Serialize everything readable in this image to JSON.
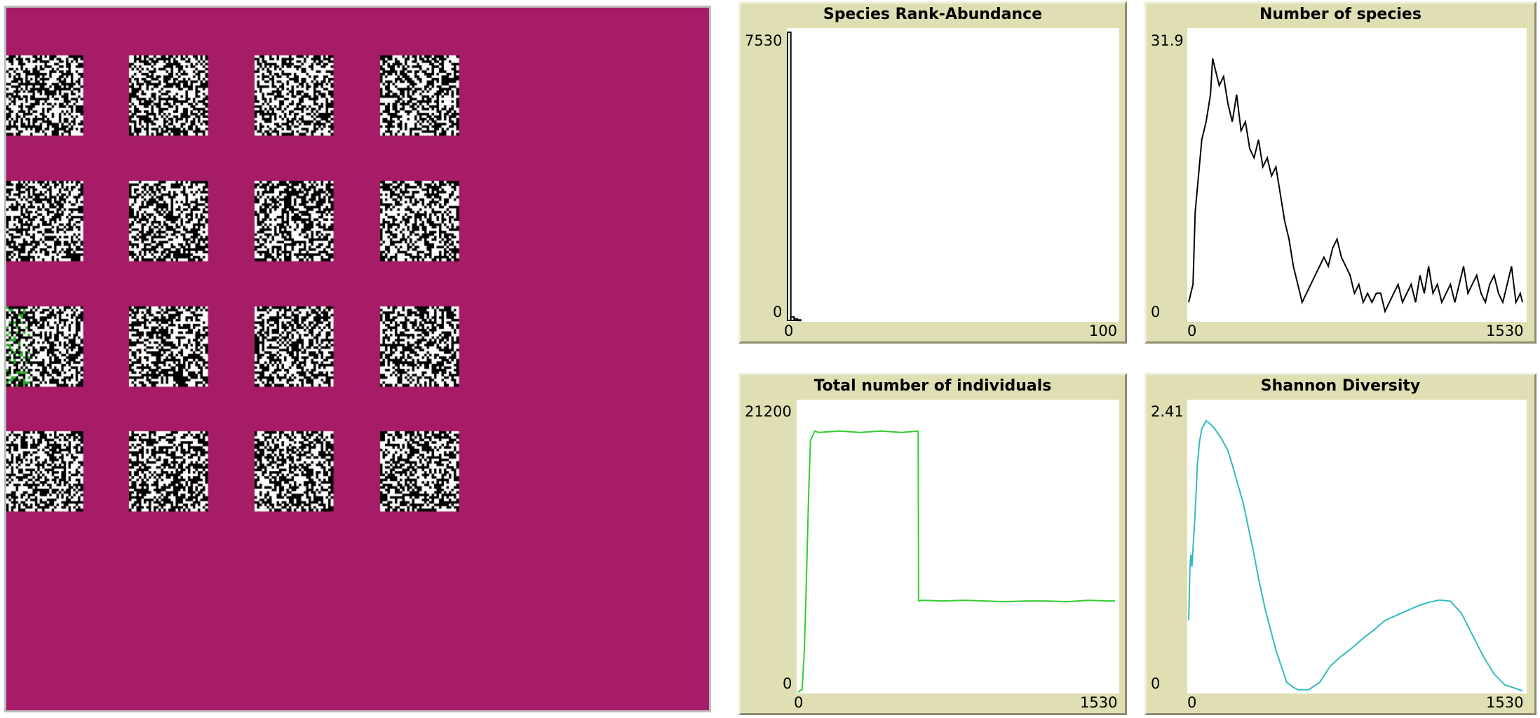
{
  "world": {
    "patch_colors": {
      "background": "#a61c66",
      "black": "#000000",
      "white": "#ffffff",
      "green": "#2faa2f"
    },
    "grid_rows": 4,
    "grid_cols": 4,
    "cells_per_side": 32
  },
  "plots": {
    "rank_abundance": {
      "title": "Species Rank-Abundance",
      "ymax": "7530",
      "ymin": "0",
      "xmin": "0",
      "xmax": "100"
    },
    "num_species": {
      "title": "Number of species",
      "ymax": "31.9",
      "ymin": "0",
      "xmin": "0",
      "xmax": "1530"
    },
    "total_individuals": {
      "title": "Total number of individuals",
      "ymax": "21200",
      "ymin": "0",
      "xmin": "0",
      "xmax": "1530"
    },
    "shannon": {
      "title": "Shannon Diversity",
      "ymax": "2.41",
      "ymin": "0",
      "xmin": "0",
      "xmax": "1530"
    }
  },
  "chart_data": [
    {
      "type": "bar",
      "title": "Species Rank-Abundance",
      "xlim": [
        0,
        100
      ],
      "ylim": [
        0,
        7530
      ],
      "categories": [
        1,
        2,
        3,
        4
      ],
      "values": [
        7530,
        90,
        40,
        15
      ],
      "color": "#000000"
    },
    {
      "type": "line",
      "title": "Number of species",
      "xlim": [
        0,
        1530
      ],
      "ylim": [
        0,
        31.9
      ],
      "x": [
        0,
        20,
        30,
        45,
        60,
        80,
        100,
        110,
        120,
        140,
        160,
        180,
        200,
        220,
        240,
        260,
        280,
        300,
        320,
        340,
        360,
        380,
        400,
        420,
        440,
        460,
        480,
        500,
        520,
        540,
        560,
        580,
        600,
        620,
        640,
        660,
        680,
        700,
        720,
        740,
        760,
        780,
        800,
        820,
        840,
        860,
        880,
        900,
        920,
        940,
        960,
        980,
        1000,
        1020,
        1040,
        1060,
        1080,
        1100,
        1120,
        1140,
        1160,
        1180,
        1200,
        1220,
        1240,
        1260,
        1280,
        1300,
        1320,
        1340,
        1360,
        1380,
        1400,
        1420,
        1440,
        1460,
        1480,
        1500,
        1520,
        1530
      ],
      "y": [
        2,
        4,
        12,
        16,
        20,
        22,
        25,
        29,
        28,
        26,
        27,
        24,
        22,
        25,
        21,
        22,
        19,
        18,
        20,
        17,
        18,
        16,
        17,
        14,
        11,
        9,
        6,
        4,
        2,
        3,
        4,
        5,
        6,
        7,
        6,
        8,
        9,
        7,
        6,
        5,
        3,
        4,
        2,
        3,
        2,
        3,
        3,
        1,
        2,
        3,
        4,
        2,
        3,
        4,
        2,
        5,
        3,
        6,
        3,
        4,
        2,
        3,
        4,
        2,
        4,
        6,
        3,
        4,
        5,
        3,
        2,
        4,
        5,
        3,
        2,
        4,
        6,
        2,
        3,
        2
      ],
      "color": "#000000"
    },
    {
      "type": "line",
      "title": "Total number of individuals",
      "xlim": [
        0,
        1530
      ],
      "ylim": [
        0,
        21200
      ],
      "x": [
        0,
        20,
        30,
        40,
        50,
        60,
        80,
        100,
        200,
        300,
        400,
        500,
        580,
        582,
        600,
        700,
        800,
        900,
        1000,
        1100,
        1200,
        1300,
        1400,
        1500,
        1530
      ],
      "y": [
        0,
        200,
        3000,
        8000,
        14000,
        18500,
        19200,
        19100,
        19200,
        19100,
        19200,
        19100,
        19200,
        6700,
        6750,
        6700,
        6750,
        6700,
        6650,
        6700,
        6700,
        6650,
        6750,
        6700,
        6700
      ],
      "color": "#33cc33"
    },
    {
      "type": "line",
      "title": "Shannon Diversity",
      "xlim": [
        0,
        1530
      ],
      "ylim": [
        0,
        2.41
      ],
      "x": [
        0,
        5,
        10,
        15,
        20,
        30,
        40,
        50,
        60,
        80,
        100,
        120,
        150,
        180,
        200,
        250,
        300,
        320,
        350,
        400,
        450,
        480,
        500,
        550,
        600,
        650,
        700,
        750,
        800,
        850,
        900,
        950,
        1000,
        1050,
        1100,
        1150,
        1200,
        1250,
        1300,
        1350,
        1400,
        1450,
        1500,
        1530
      ],
      "y": [
        0.6,
        1.0,
        1.15,
        1.05,
        1.2,
        1.5,
        1.9,
        2.1,
        2.2,
        2.27,
        2.24,
        2.2,
        2.12,
        2.02,
        1.9,
        1.58,
        1.15,
        0.95,
        0.7,
        0.35,
        0.08,
        0.04,
        0.02,
        0.02,
        0.08,
        0.22,
        0.3,
        0.37,
        0.45,
        0.52,
        0.6,
        0.64,
        0.68,
        0.72,
        0.75,
        0.77,
        0.76,
        0.66,
        0.48,
        0.3,
        0.15,
        0.06,
        0.03,
        0.01
      ],
      "color": "#33bbbb"
    }
  ]
}
